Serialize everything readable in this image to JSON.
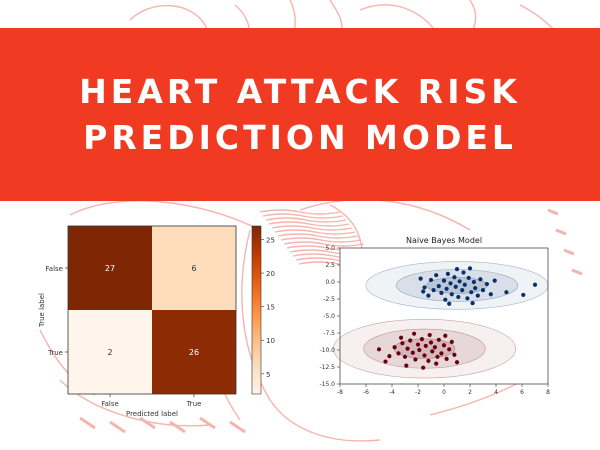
{
  "banner": {
    "line1": "HEART ATTACK RISK",
    "line2": "PREDICTION MODEL",
    "color": "#f03a22"
  },
  "background": {
    "icon": "heart-anatomy-sketch-icon",
    "color": "#f4a7a0"
  },
  "chart_data": [
    {
      "type": "heatmap",
      "title": "",
      "xlabel": "Predicted label",
      "ylabel": "True label",
      "x_categories": [
        "False",
        "True"
      ],
      "y_categories": [
        "False",
        "True"
      ],
      "matrix": [
        [
          27,
          6
        ],
        [
          2,
          26
        ]
      ],
      "colormap": "Oranges",
      "colorbar": {
        "ticks": [
          5,
          10,
          15,
          20,
          25
        ],
        "range": [
          2,
          27
        ]
      },
      "grid": false
    },
    {
      "type": "scatter",
      "title": "Naive Bayes Model",
      "xlabel": "",
      "ylabel": "",
      "xlim": [
        -8,
        8
      ],
      "ylim": [
        -15,
        5
      ],
      "xticks": [
        -8,
        -6,
        -4,
        -2,
        0,
        2,
        4,
        6,
        8
      ],
      "yticks": [
        "5.0",
        "2.5",
        "0.0",
        "-2.5",
        "-5.0",
        "-7.5",
        "-10.0",
        "-12.5",
        "-15.0"
      ],
      "grid": false,
      "series": [
        {
          "color": "#08306b",
          "center": [
            1.0,
            -0.5
          ],
          "spread": [
            2.6,
            1.3
          ],
          "points": [
            [
              -1.8,
              0.5
            ],
            [
              -1.5,
              -0.8
            ],
            [
              -1.2,
              -2.0
            ],
            [
              -1.0,
              0.3
            ],
            [
              -0.6,
              1.0
            ],
            [
              -0.4,
              -0.6
            ],
            [
              -0.2,
              -1.6
            ],
            [
              0.0,
              0.2
            ],
            [
              0.2,
              -1.0
            ],
            [
              0.3,
              1.2
            ],
            [
              0.5,
              -0.2
            ],
            [
              0.6,
              -1.8
            ],
            [
              0.8,
              0.7
            ],
            [
              0.9,
              -0.7
            ],
            [
              1.1,
              -2.2
            ],
            [
              1.2,
              0.1
            ],
            [
              1.4,
              -1.2
            ],
            [
              1.5,
              1.4
            ],
            [
              1.6,
              -0.4
            ],
            [
              1.8,
              -2.4
            ],
            [
              1.9,
              0.6
            ],
            [
              2.1,
              -1.5
            ],
            [
              2.3,
              0.0
            ],
            [
              2.4,
              -0.9
            ],
            [
              2.6,
              -2.0
            ],
            [
              2.8,
              0.4
            ],
            [
              3.0,
              -1.2
            ],
            [
              3.3,
              -0.3
            ],
            [
              3.6,
              -1.8
            ],
            [
              3.9,
              0.2
            ],
            [
              -0.8,
              -1.2
            ],
            [
              0.1,
              -2.6
            ],
            [
              1.0,
              1.9
            ],
            [
              2.0,
              2.0
            ],
            [
              -1.6,
              -1.4
            ],
            [
              4.8,
              -1.5
            ],
            [
              6.1,
              -1.9
            ],
            [
              7.0,
              -0.4
            ],
            [
              0.4,
              -3.2
            ],
            [
              2.2,
              -3.1
            ]
          ]
        },
        {
          "color": "#67000d",
          "center": [
            -1.5,
            -9.8
          ],
          "spread": [
            2.6,
            1.6
          ],
          "points": [
            [
              -3.8,
              -9.6
            ],
            [
              -3.5,
              -10.5
            ],
            [
              -3.2,
              -9.0
            ],
            [
              -3.0,
              -11.0
            ],
            [
              -2.8,
              -9.8
            ],
            [
              -2.6,
              -8.6
            ],
            [
              -2.4,
              -10.4
            ],
            [
              -2.2,
              -11.4
            ],
            [
              -2.0,
              -9.2
            ],
            [
              -1.9,
              -10.0
            ],
            [
              -1.7,
              -8.4
            ],
            [
              -1.5,
              -10.8
            ],
            [
              -1.4,
              -9.4
            ],
            [
              -1.2,
              -11.6
            ],
            [
              -1.0,
              -8.9
            ],
            [
              -0.9,
              -10.2
            ],
            [
              -0.7,
              -9.6
            ],
            [
              -0.5,
              -11.0
            ],
            [
              -0.4,
              -8.5
            ],
            [
              -0.2,
              -10.5
            ],
            [
              0.0,
              -9.3
            ],
            [
              0.2,
              -11.3
            ],
            [
              0.4,
              -9.9
            ],
            [
              0.6,
              -8.8
            ],
            [
              0.8,
              -10.7
            ],
            [
              -2.9,
              -12.3
            ],
            [
              -1.6,
              -12.6
            ],
            [
              -0.6,
              -12.0
            ],
            [
              -4.2,
              -10.9
            ],
            [
              -3.3,
              -8.2
            ],
            [
              -1.1,
              -7.8
            ],
            [
              0.1,
              -7.9
            ],
            [
              -2.3,
              -7.6
            ],
            [
              1.0,
              -11.8
            ],
            [
              -5.0,
              -9.9
            ],
            [
              -4.5,
              -11.7
            ]
          ]
        }
      ]
    }
  ]
}
